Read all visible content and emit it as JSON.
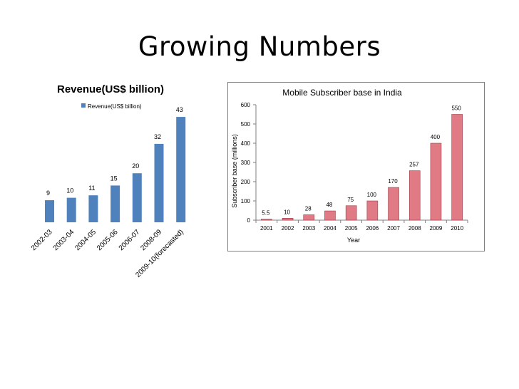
{
  "slide": {
    "title": "Growing Numbers"
  },
  "chart_data": [
    {
      "type": "bar",
      "title": "Revenue(US$ billion)",
      "legend": {
        "position": "top",
        "entries": [
          "Revenue(US$ billion)"
        ]
      },
      "categories": [
        "2002-03",
        "2003-04",
        "2004-05",
        "2005-06",
        "2006-07",
        "2008-09",
        "2009-10(forecasted)"
      ],
      "series": [
        {
          "name": "Revenue(US$ billion)",
          "values": [
            9,
            10,
            11,
            15,
            20,
            32,
            43
          ],
          "color": "#4f81bd"
        }
      ],
      "ylim": [
        0,
        50
      ],
      "grid": false
    },
    {
      "type": "bar",
      "title": "Mobile Subscriber base in India",
      "xlabel": "Year",
      "ylabel": "Subscriber base (millions)",
      "categories": [
        "2001",
        "2002",
        "2003",
        "2004",
        "2005",
        "2006",
        "2007",
        "2008",
        "2009",
        "2010"
      ],
      "series": [
        {
          "values": [
            5.5,
            10,
            28,
            48,
            75,
            100,
            170,
            257,
            400,
            550
          ],
          "color": "#e07b85"
        }
      ],
      "yticks": [
        0,
        100,
        200,
        300,
        400,
        500,
        600
      ],
      "ylim": [
        0,
        600
      ],
      "grid": false
    }
  ]
}
